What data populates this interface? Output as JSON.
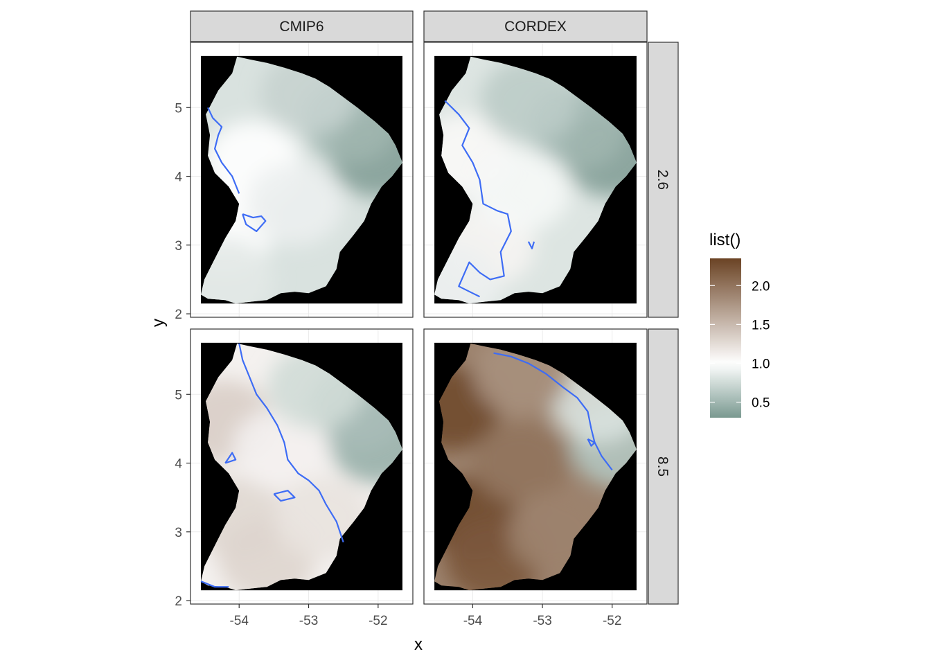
{
  "chart_data": {
    "type": "heatmap",
    "facet_columns": [
      "CMIP6",
      "CORDEX"
    ],
    "facet_rows": [
      "2.6",
      "8.5"
    ],
    "xlabel": "x",
    "ylabel": "y",
    "x_ticks": [
      -54,
      -53,
      -52
    ],
    "x_tick_labels": [
      "-54",
      "-53",
      "-52"
    ],
    "y_ticks": [
      2,
      3,
      4,
      5
    ],
    "y_tick_labels": [
      "2",
      "3",
      "4",
      "5"
    ],
    "xlim": [
      -54.7,
      -51.5
    ],
    "ylim": [
      1.95,
      5.95
    ],
    "raster_extent": {
      "x": [
        -54.55,
        -51.65
      ],
      "y": [
        2.15,
        5.75
      ]
    },
    "contour_level": 1.0,
    "legend": {
      "title": "list()",
      "breaks": [
        0.5,
        1.0,
        1.5,
        2.0
      ],
      "break_labels": [
        "0.5",
        "1.0",
        "1.5",
        "2.0"
      ],
      "range": [
        0.3,
        2.35
      ],
      "colors": {
        "low": "#7a9990",
        "mid": "#ffffff",
        "high": "#6b4324"
      }
    },
    "panels": [
      {
        "column": "CMIP6",
        "row": "2.6",
        "ratio_min": 0.45,
        "ratio_max": 1.05,
        "mean_ratio": 0.8
      },
      {
        "column": "CORDEX",
        "row": "2.6",
        "ratio_min": 0.45,
        "ratio_max": 1.1,
        "mean_ratio": 0.82
      },
      {
        "column": "CMIP6",
        "row": "8.5",
        "ratio_min": 0.55,
        "ratio_max": 1.35,
        "mean_ratio": 1.1
      },
      {
        "column": "CORDEX",
        "row": "8.5",
        "ratio_min": 0.6,
        "ratio_max": 2.3,
        "mean_ratio": 1.9
      }
    ],
    "colors": {
      "background_ocean": "#000000",
      "contour_line": "#3d6cf5",
      "strip_fill": "#d9d9d9",
      "strip_border": "#333333",
      "panel_border": "#333333",
      "grid": "#ebebeb"
    }
  }
}
